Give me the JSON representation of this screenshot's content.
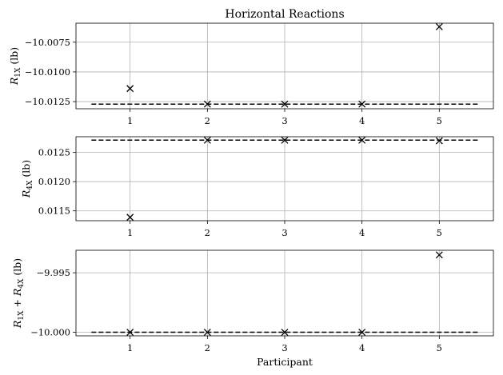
{
  "figure_title": "Horizontal Reactions",
  "chart_data": [
    {
      "type": "scatter",
      "title": "Horizontal Reactions",
      "xlabel": "",
      "ylabel": "R_{1X} (lb)",
      "ylabel_main": "R",
      "ylabel_sub": "1X",
      "ylabel_unit": " (lb)",
      "x": [
        1,
        2,
        3,
        4,
        5
      ],
      "y": [
        -10.0114,
        -10.01271,
        -10.01271,
        -10.01271,
        -10.0062
      ],
      "reference_value": -10.01271,
      "xlim": [
        0.3,
        5.7
      ],
      "ylim": [
        -10.0131,
        -10.0059
      ],
      "xticks": [
        1,
        2,
        3,
        4,
        5
      ],
      "xtick_labels": [
        "1",
        "2",
        "3",
        "4",
        "5"
      ],
      "yticks": [
        -10.0075,
        -10.01,
        -10.0125
      ],
      "ytick_labels": [
        "−10.0075",
        "−10.0100",
        "−10.0125"
      ],
      "marker": "x",
      "reference_line_style": "dashed",
      "grid": true
    },
    {
      "type": "scatter",
      "title": "",
      "xlabel": "",
      "ylabel": "R_{4X} (lb)",
      "ylabel_main": "R",
      "ylabel_sub": "4X",
      "ylabel_unit": " (lb)",
      "x": [
        1,
        2,
        3,
        4,
        5
      ],
      "y": [
        0.01139,
        0.01271,
        0.01271,
        0.01271,
        0.0127
      ],
      "reference_value": 0.01271,
      "xlim": [
        0.3,
        5.7
      ],
      "ylim": [
        0.011332,
        0.012769
      ],
      "xticks": [
        1,
        2,
        3,
        4,
        5
      ],
      "xtick_labels": [
        "1",
        "2",
        "3",
        "4",
        "5"
      ],
      "yticks": [
        0.0125,
        0.012,
        0.0115
      ],
      "ytick_labels": [
        "0.0125",
        "0.0120",
        "0.0115"
      ],
      "marker": "x",
      "reference_line_style": "dashed",
      "grid": true
    },
    {
      "type": "scatter",
      "title": "",
      "xlabel": "Participant",
      "ylabel": "R_{1X} + R_{4X} (lb)",
      "ylabel_main": "R",
      "ylabel_sub": "1X",
      "ylabel_mid": " + R",
      "ylabel_sub2": "4X",
      "ylabel_unit": " (lb)",
      "x": [
        1,
        2,
        3,
        4,
        5
      ],
      "y": [
        -10.0,
        -10.0,
        -10.0,
        -10.0,
        -9.9935
      ],
      "reference_value": -10.0,
      "xlim": [
        0.3,
        5.7
      ],
      "ylim": [
        -10.0003,
        -9.99311
      ],
      "xticks": [
        1,
        2,
        3,
        4,
        5
      ],
      "xtick_labels": [
        "1",
        "2",
        "3",
        "4",
        "5"
      ],
      "yticks": [
        -9.995,
        -10.0
      ],
      "ytick_labels": [
        "−9.995",
        "−10.000"
      ],
      "marker": "x",
      "reference_line_style": "dashed",
      "grid": true
    }
  ]
}
